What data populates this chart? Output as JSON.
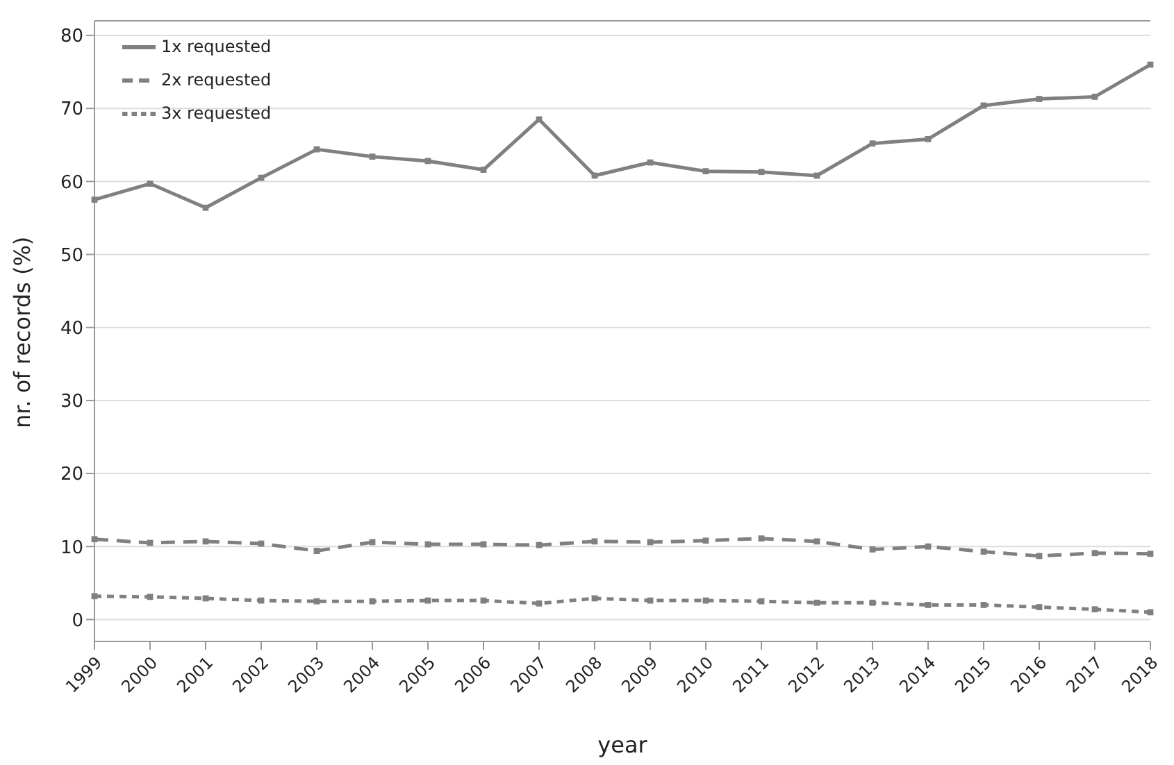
{
  "chart_data": {
    "type": "line",
    "xlabel": "year",
    "ylabel": "nr. of records (%)",
    "categories": [
      "1999",
      "2000",
      "2001",
      "2002",
      "2003",
      "2004",
      "2005",
      "2006",
      "2007",
      "2008",
      "2009",
      "2010",
      "2011",
      "2012",
      "2013",
      "2014",
      "2015",
      "2016",
      "2017",
      "2018"
    ],
    "series": [
      {
        "name": "1x requested",
        "color": "#808080",
        "line_style": "solid",
        "values": [
          57.5,
          59.7,
          56.4,
          60.5,
          64.4,
          63.4,
          62.8,
          61.6,
          68.5,
          60.8,
          62.6,
          61.4,
          61.3,
          60.8,
          65.2,
          65.8,
          70.4,
          71.3,
          71.6,
          76.0
        ]
      },
      {
        "name": "2x requested",
        "color": "#808080",
        "line_style": "dashed",
        "values": [
          11.0,
          10.5,
          10.7,
          10.4,
          9.4,
          10.6,
          10.3,
          10.3,
          10.2,
          10.7,
          10.6,
          10.8,
          11.1,
          10.7,
          9.6,
          10.0,
          9.3,
          8.7,
          9.1,
          9.0
        ]
      },
      {
        "name": "3x requested",
        "color": "#808080",
        "line_style": "dotted",
        "values": [
          3.2,
          3.1,
          2.9,
          2.6,
          2.5,
          2.5,
          2.6,
          2.6,
          2.2,
          2.9,
          2.6,
          2.6,
          2.5,
          2.3,
          2.3,
          2.0,
          2.0,
          1.7,
          1.4,
          1.0
        ]
      }
    ],
    "ylim": [
      -3,
      82
    ],
    "yticks": [
      0,
      10,
      20,
      30,
      40,
      50,
      60,
      70,
      80
    ],
    "grid": "y",
    "legend": "top left",
    "marker": "square"
  }
}
